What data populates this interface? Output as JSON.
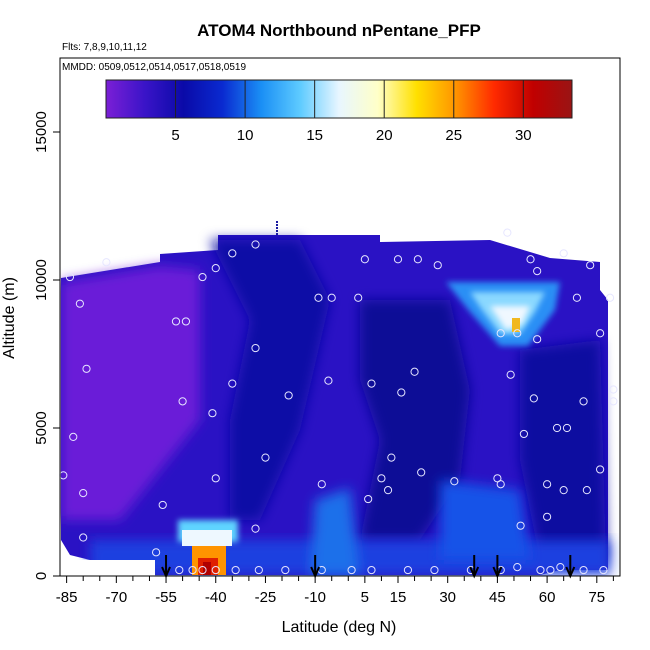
{
  "chart_data": {
    "type": "heatmap",
    "title": "ATOM4 Northbound nPentane_PFP",
    "subtitle_flights": "Flts: 7,8,9,10,11,12",
    "subtitle_dates": "MMDD: 0509,0512,0514,0517,0518,0519",
    "xlabel": "Latitude (deg N)",
    "ylabel": "Altitude (m)",
    "xlim": [
      -87,
      82
    ],
    "ylim": [
      0,
      17500
    ],
    "x_ticks": [
      -85,
      -70,
      -55,
      -40,
      -25,
      -10,
      5,
      15,
      30,
      45,
      60,
      75
    ],
    "y_ticks": [
      0,
      5000,
      10000,
      15000
    ],
    "colorbar": {
      "range": [
        0,
        33.5
      ],
      "ticks": [
        5,
        10,
        15,
        20,
        25,
        30
      ],
      "colors": [
        "#7b1fd6",
        "#3a14c8",
        "#0a0aa8",
        "#0a2ad0",
        "#1a8ff5",
        "#5ecbff",
        "#e8f6ff",
        "#ffffc8",
        "#ffe000",
        "#ff9400",
        "#ff2a00",
        "#c00000",
        "#9a1414"
      ]
    },
    "grid": false,
    "profile_markers_latitude": [
      -55,
      -10,
      38,
      45,
      67
    ],
    "sample_points": [
      {
        "lat": -84,
        "alt": 10100
      },
      {
        "lat": -73,
        "alt": 10600
      },
      {
        "lat": -81,
        "alt": 9200
      },
      {
        "lat": -79,
        "alt": 7000
      },
      {
        "lat": -83,
        "alt": 4700
      },
      {
        "lat": -80,
        "alt": 2800
      },
      {
        "lat": -80,
        "alt": 1300
      },
      {
        "lat": -86,
        "alt": 3400
      },
      {
        "lat": -52,
        "alt": 8600
      },
      {
        "lat": -49,
        "alt": 8600
      },
      {
        "lat": -44,
        "alt": 10100
      },
      {
        "lat": -40,
        "alt": 10400
      },
      {
        "lat": -28,
        "alt": 11200
      },
      {
        "lat": -35,
        "alt": 10900
      },
      {
        "lat": -50,
        "alt": 5900
      },
      {
        "lat": -35,
        "alt": 6500
      },
      {
        "lat": -28,
        "alt": 7700
      },
      {
        "lat": -41,
        "alt": 5500
      },
      {
        "lat": -40,
        "alt": 3300
      },
      {
        "lat": -25,
        "alt": 4000
      },
      {
        "lat": -18,
        "alt": 6100
      },
      {
        "lat": -9,
        "alt": 9400
      },
      {
        "lat": -5,
        "alt": 9400
      },
      {
        "lat": 5,
        "alt": 10700
      },
      {
        "lat": 3,
        "alt": 9400
      },
      {
        "lat": 15,
        "alt": 10700
      },
      {
        "lat": 21,
        "alt": 10700
      },
      {
        "lat": 27,
        "alt": 10500
      },
      {
        "lat": -6,
        "alt": 6600
      },
      {
        "lat": 7,
        "alt": 6500
      },
      {
        "lat": 16,
        "alt": 6200
      },
      {
        "lat": 20,
        "alt": 6900
      },
      {
        "lat": -8,
        "alt": 3100
      },
      {
        "lat": 10,
        "alt": 3300
      },
      {
        "lat": 12,
        "alt": 2900
      },
      {
        "lat": 6,
        "alt": 2600
      },
      {
        "lat": 13,
        "alt": 4000
      },
      {
        "lat": 22,
        "alt": 3500
      },
      {
        "lat": 32,
        "alt": 3200
      },
      {
        "lat": 46,
        "alt": 3100
      },
      {
        "lat": 48,
        "alt": 11600
      },
      {
        "lat": 55,
        "alt": 10700
      },
      {
        "lat": 57,
        "alt": 10300
      },
      {
        "lat": 65,
        "alt": 10900
      },
      {
        "lat": 73,
        "alt": 10500
      },
      {
        "lat": 46,
        "alt": 8200
      },
      {
        "lat": 51,
        "alt": 8200
      },
      {
        "lat": 57,
        "alt": 8000
      },
      {
        "lat": 49,
        "alt": 6800
      },
      {
        "lat": 56,
        "alt": 6000
      },
      {
        "lat": 71,
        "alt": 5900
      },
      {
        "lat": 80,
        "alt": 5900
      },
      {
        "lat": 63,
        "alt": 5000
      },
      {
        "lat": 66,
        "alt": 5000
      },
      {
        "lat": 53,
        "alt": 4800
      },
      {
        "lat": 69,
        "alt": 9400
      },
      {
        "lat": 79,
        "alt": 9400
      },
      {
        "lat": 76,
        "alt": 8200
      },
      {
        "lat": 80,
        "alt": 6300
      },
      {
        "lat": 45,
        "alt": 3300
      },
      {
        "lat": 60,
        "alt": 3100
      },
      {
        "lat": 65,
        "alt": 2900
      },
      {
        "lat": 72,
        "alt": 2900
      },
      {
        "lat": 60,
        "alt": 2000
      },
      {
        "lat": 52,
        "alt": 1700
      },
      {
        "lat": 76,
        "alt": 3600
      },
      {
        "lat": -56,
        "alt": 2400
      },
      {
        "lat": -58,
        "alt": 800
      },
      {
        "lat": -28,
        "alt": 1600
      },
      {
        "lat": -51,
        "alt": 200
      },
      {
        "lat": -47,
        "alt": 200
      },
      {
        "lat": -44,
        "alt": 200
      },
      {
        "lat": -40,
        "alt": 200
      },
      {
        "lat": -34,
        "alt": 200
      },
      {
        "lat": -27,
        "alt": 200
      },
      {
        "lat": -19,
        "alt": 200
      },
      {
        "lat": -8,
        "alt": 200
      },
      {
        "lat": 1,
        "alt": 200
      },
      {
        "lat": 7,
        "alt": 200
      },
      {
        "lat": 18,
        "alt": 200
      },
      {
        "lat": 26,
        "alt": 200
      },
      {
        "lat": 37,
        "alt": 200
      },
      {
        "lat": 46,
        "alt": 200
      },
      {
        "lat": 51,
        "alt": 300
      },
      {
        "lat": 58,
        "alt": 200
      },
      {
        "lat": 61,
        "alt": 200
      },
      {
        "lat": 64,
        "alt": 300
      },
      {
        "lat": 71,
        "alt": 200
      },
      {
        "lat": 77,
        "alt": 200
      }
    ]
  }
}
